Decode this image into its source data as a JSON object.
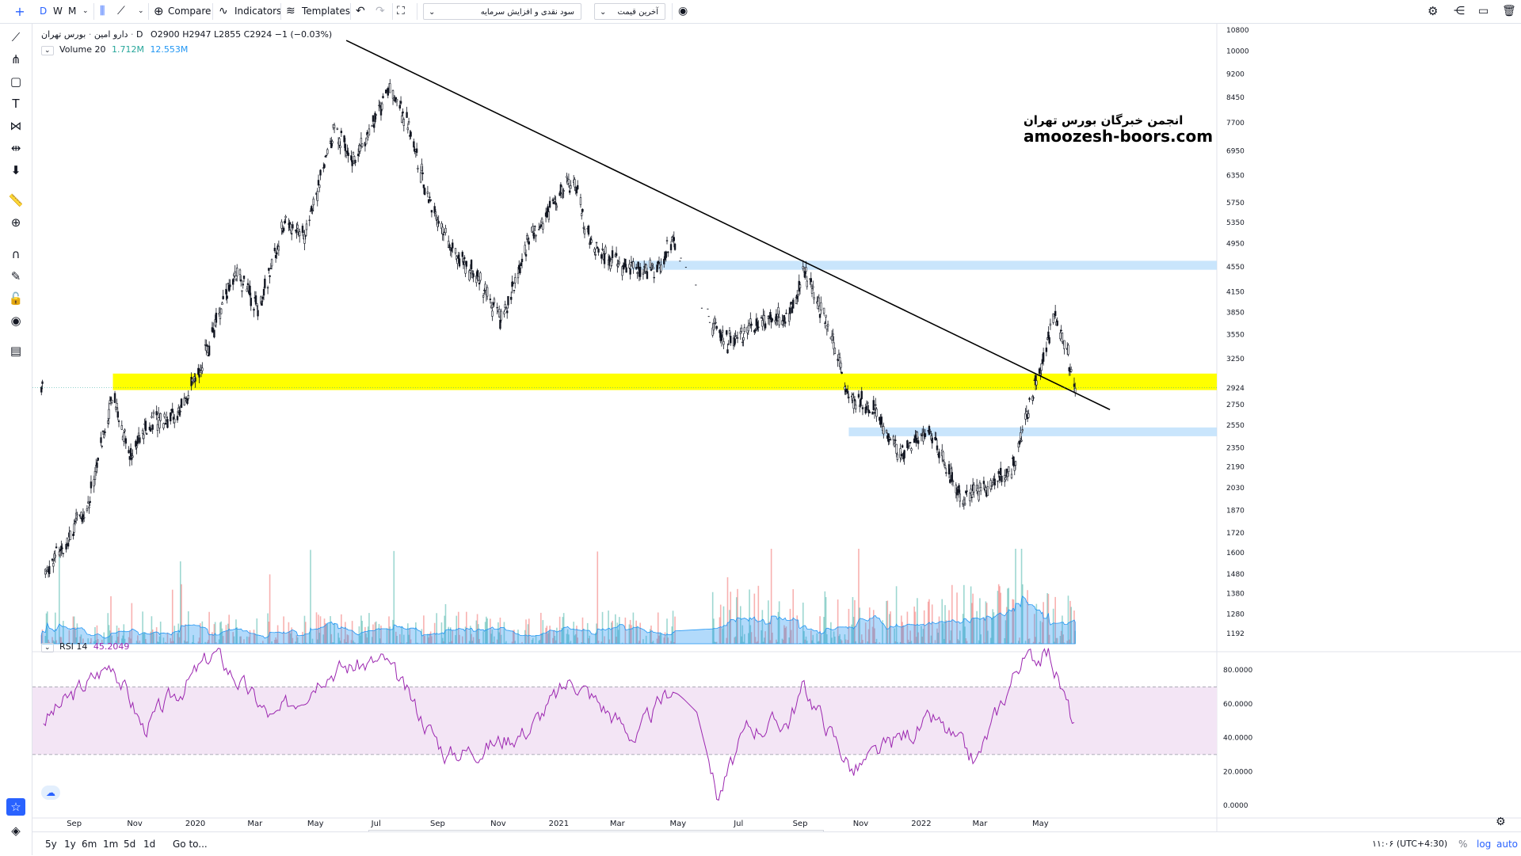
{
  "toolbar": {
    "intervals": [
      "D",
      "W",
      "M"
    ],
    "compare": "Compare",
    "indicators": "Indicators",
    "templates": "Templates",
    "dropdown1": "سود نقدی و افزایش سرمایه",
    "dropdown2": "آخرین قیمت"
  },
  "legend": {
    "symbol": "دارو امین",
    "exchange": "بورس تهران",
    "interval": "D",
    "open": "O2900",
    "high": "H2947",
    "low": "L2855",
    "close": "C2924",
    "change": "−1 (−0.03%)",
    "volume_label": "Volume 20",
    "volume_val1": "1.712M",
    "volume_val2": "12.553M",
    "rsi_label": "RSI 14",
    "rsi_val": "45.2049"
  },
  "watermark": {
    "line1": "انجمن خبرگان بورس تهران",
    "line2": "amoozesh-boors.com"
  },
  "bottombar": {
    "ranges": [
      "5y",
      "1y",
      "6m",
      "1m",
      "5d",
      "1d"
    ],
    "goto": "Go to...",
    "time": "۱۱:۰۶ (UTC+4:30)",
    "pct": "%",
    "log": "log",
    "auto": "auto"
  },
  "colors": {
    "accent": "#2962ff",
    "up": "#26a69a",
    "down": "#ef5350",
    "yellow_zone": "#ffff00",
    "blue_zone": "#bbdefb",
    "rsi_line": "#9c27b0",
    "rsi_band": "#f3e5f5"
  },
  "chart_data": {
    "type": "candlestick",
    "price_axis_ticks": [
      10800,
      10000,
      9200,
      8450,
      7700,
      6950,
      6350,
      5750,
      5350,
      4950,
      4550,
      4150,
      3850,
      3550,
      3250,
      2924,
      2750,
      2550,
      2350,
      2190,
      2030,
      1870,
      1720,
      1600,
      1480,
      1380,
      1280,
      1192
    ],
    "current_price": 2924,
    "rsi_axis_ticks": [
      "80.0000",
      "60.0000",
      "40.0000",
      "20.0000",
      "0.0000"
    ],
    "rsi_bands": [
      70,
      30
    ],
    "time_axis_ticks": [
      "Sep",
      "Nov",
      "2020",
      "Mar",
      "May",
      "Jul",
      "Sep",
      "Nov",
      "2021",
      "Mar",
      "May",
      "Jul",
      "Sep",
      "Nov",
      "2022",
      "Mar",
      "May"
    ],
    "price_path": [
      {
        "t": "2019-08-01",
        "p": 1480
      },
      {
        "t": "2019-09-15",
        "p": 1900
      },
      {
        "t": "2019-10-10",
        "p": 2900
      },
      {
        "t": "2019-10-25",
        "p": 2300
      },
      {
        "t": "2019-11-20",
        "p": 2600
      },
      {
        "t": "2019-12-15",
        "p": 2650
      },
      {
        "t": "2020-01-05",
        "p": 3100
      },
      {
        "t": "2020-02-10",
        "p": 4500
      },
      {
        "t": "2020-03-05",
        "p": 3900
      },
      {
        "t": "2020-04-01",
        "p": 5400
      },
      {
        "t": "2020-04-20",
        "p": 5100
      },
      {
        "t": "2020-05-20",
        "p": 7500
      },
      {
        "t": "2020-06-10",
        "p": 6700
      },
      {
        "t": "2020-07-15",
        "p": 8800
      },
      {
        "t": "2020-08-01",
        "p": 7700
      },
      {
        "t": "2020-08-25",
        "p": 5700
      },
      {
        "t": "2020-09-20",
        "p": 4700
      },
      {
        "t": "2020-10-10",
        "p": 4400
      },
      {
        "t": "2020-11-05",
        "p": 3700
      },
      {
        "t": "2020-12-01",
        "p": 5000
      },
      {
        "t": "2021-01-15",
        "p": 6300
      },
      {
        "t": "2021-02-01",
        "p": 5000
      },
      {
        "t": "2021-03-01",
        "p": 4600
      },
      {
        "t": "2021-04-10",
        "p": 4500
      },
      {
        "t": "2021-04-25",
        "p": 4950
      },
      {
        "t": "2021-06-05",
        "p": 3700
      },
      {
        "t": "2021-06-20",
        "p": 3450
      },
      {
        "t": "2021-07-20",
        "p": 3700
      },
      {
        "t": "2021-08-20",
        "p": 3800
      },
      {
        "t": "2021-09-05",
        "p": 4500
      },
      {
        "t": "2021-10-01",
        "p": 3600
      },
      {
        "t": "2021-10-20",
        "p": 2850
      },
      {
        "t": "2021-11-15",
        "p": 2700
      },
      {
        "t": "2021-12-10",
        "p": 2300
      },
      {
        "t": "2022-01-10",
        "p": 2500
      },
      {
        "t": "2022-02-10",
        "p": 1950
      },
      {
        "t": "2022-03-10",
        "p": 2050
      },
      {
        "t": "2022-04-05",
        "p": 2200
      },
      {
        "t": "2022-04-20",
        "p": 2750
      },
      {
        "t": "2022-05-05",
        "p": 3300
      },
      {
        "t": "2022-05-15",
        "p": 3800
      },
      {
        "t": "2022-05-25",
        "p": 3500
      },
      {
        "t": "2022-06-05",
        "p": 2924
      }
    ],
    "trendline": [
      {
        "t": "2020-06-01",
        "p": 10400
      },
      {
        "t": "2022-07-10",
        "p": 2700
      }
    ],
    "zones": [
      {
        "color": "yellow",
        "from": "2019-10-10",
        "to": "end",
        "low": 2900,
        "high": 3080
      },
      {
        "color": "blue",
        "from": "2021-03-15",
        "to": "end",
        "low": 4500,
        "high": 4650
      },
      {
        "color": "blue",
        "from": "2021-10-20",
        "to": "end",
        "low": 2450,
        "high": 2530
      }
    ],
    "rsi_path": [
      {
        "t": "2019-08-01",
        "v": 50
      },
      {
        "t": "2019-10-10",
        "v": 85
      },
      {
        "t": "2019-11-10",
        "v": 45
      },
      {
        "t": "2020-01-20",
        "v": 90
      },
      {
        "t": "2020-03-20",
        "v": 50
      },
      {
        "t": "2020-05-10",
        "v": 80
      },
      {
        "t": "2020-07-10",
        "v": 85
      },
      {
        "t": "2020-09-10",
        "v": 30
      },
      {
        "t": "2020-10-20",
        "v": 35
      },
      {
        "t": "2020-12-01",
        "v": 45
      },
      {
        "t": "2021-01-15",
        "v": 75
      },
      {
        "t": "2021-03-20",
        "v": 40
      },
      {
        "t": "2021-04-25",
        "v": 70
      },
      {
        "t": "2021-05-20",
        "v": 55
      },
      {
        "t": "2021-06-10",
        "v": 5
      },
      {
        "t": "2021-07-10",
        "v": 45
      },
      {
        "t": "2021-08-20",
        "v": 50
      },
      {
        "t": "2021-09-05",
        "v": 70
      },
      {
        "t": "2021-10-25",
        "v": 20
      },
      {
        "t": "2021-12-10",
        "v": 40
      },
      {
        "t": "2022-01-15",
        "v": 50
      },
      {
        "t": "2022-02-25",
        "v": 25
      },
      {
        "t": "2022-04-10",
        "v": 85
      },
      {
        "t": "2022-05-10",
        "v": 90
      },
      {
        "t": "2022-06-05",
        "v": 45
      }
    ]
  }
}
